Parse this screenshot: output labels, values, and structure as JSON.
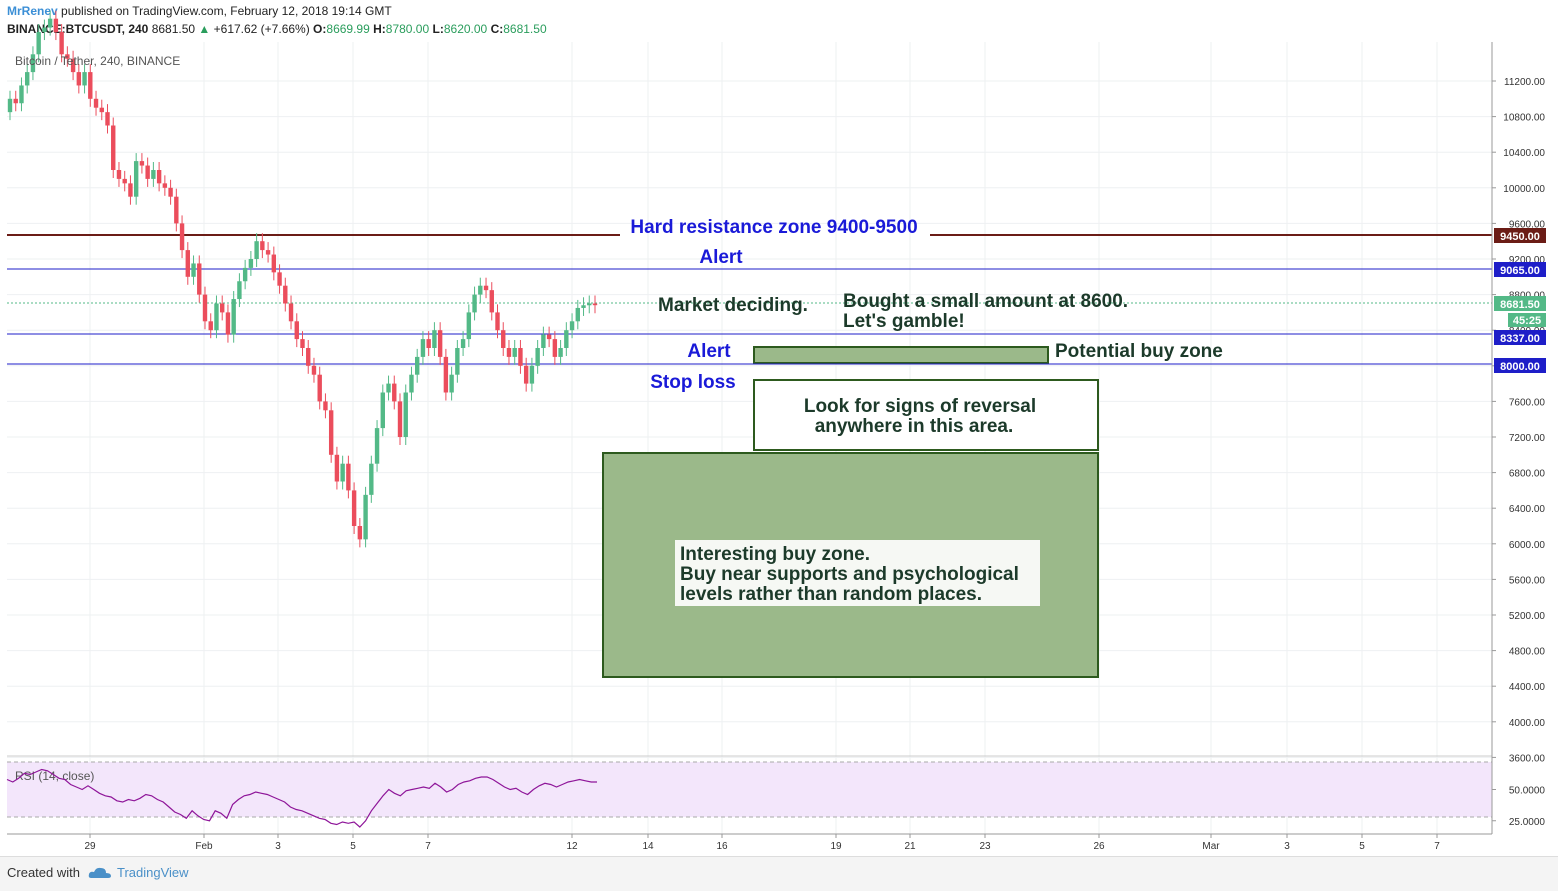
{
  "header": {
    "author": "MrRenev",
    "published": " published on TradingView.com, February 12, 2018 19:14 GMT",
    "symbol": "BINANCE:BTCUSDT, 240",
    "last": " 8681.50 ",
    "change": " +617.62 (+7.66%) ",
    "o_label": "O:",
    "o_val": "8669.99",
    "h_label": " H:",
    "h_val": "8780.00",
    "l_label": " L:",
    "l_val": "8620.00",
    "c_label": " C:",
    "c_val": "8681.50"
  },
  "colors": {
    "up": "#53b987",
    "down": "#eb4d5c",
    "resistance": "#6b1c16",
    "alert": "#1e1ec8",
    "zone_fill": "#9bb98a",
    "zone_border": "#2d5a1e",
    "rsi_bg": "#f3e6fb",
    "rsi_line": "#8e1599",
    "label_blue": "#1a1ad8",
    "note_dark": "#1c3a2a"
  },
  "chart_data": [
    {
      "type": "candlestick",
      "title": "Bitcoin / Tether, 240, BINANCE",
      "x_tick_labels": [
        "29",
        "Feb",
        "3",
        "5",
        "7",
        "12",
        "14",
        "16",
        "19",
        "21",
        "23",
        "26",
        "Mar",
        "3",
        "5",
        "7"
      ],
      "y_tick_labels": [
        "11200.00",
        "10800.00",
        "10400.00",
        "10000.00",
        "9600.00",
        "9200.00",
        "8800.00",
        "8400.00",
        "8000.00",
        "7600.00",
        "7200.00",
        "6800.00",
        "6400.00",
        "6000.00",
        "5600.00",
        "5200.00",
        "4800.00",
        "4400.00",
        "4000.00",
        "3600.00"
      ],
      "ylim": [
        3550,
        11800
      ],
      "close": [
        11000,
        10950,
        11150,
        11300,
        11500,
        11750,
        11800,
        11900,
        11750,
        11500,
        11450,
        11300,
        11150,
        11300,
        11000,
        10900,
        10850,
        10700,
        10200,
        10100,
        10050,
        9900,
        10300,
        10250,
        10100,
        10200,
        10050,
        10000,
        9900,
        9600,
        9300,
        9000,
        9150,
        8800,
        8500,
        8400,
        8700,
        8600,
        8350,
        8750,
        8950,
        9100,
        9200,
        9400,
        9300,
        9250,
        9050,
        8900,
        8700,
        8500,
        8300,
        8200,
        8000,
        7900,
        7600,
        7500,
        7000,
        6700,
        6900,
        6600,
        6200,
        6050,
        6550,
        6900,
        7300,
        7700,
        7800,
        7600,
        7200,
        7700,
        7900,
        8100,
        8300,
        8200,
        8400,
        8100,
        7700,
        7900,
        8200,
        8300,
        8600,
        8800,
        8900,
        8850,
        8600,
        8400,
        8200,
        8100,
        8200,
        8000,
        7800,
        8000,
        8200,
        8350,
        8300,
        8100,
        8200,
        8400,
        8500,
        8650,
        8680,
        8700,
        8681
      ]
    },
    {
      "type": "line",
      "title": "RSI (14, close)",
      "y_tick_labels": [
        "50.0000",
        "25.0000"
      ],
      "ylim": [
        10,
        80
      ],
      "values": [
        58,
        56,
        59,
        63,
        62,
        64,
        66,
        65,
        62,
        59,
        58,
        54,
        52,
        50,
        53,
        50,
        47,
        45,
        44,
        41,
        40,
        42,
        41,
        43,
        46,
        45,
        42,
        40,
        36,
        32,
        30,
        27,
        33,
        29,
        26,
        25,
        33,
        31,
        27,
        38,
        42,
        45,
        46,
        48,
        47,
        46,
        44,
        42,
        40,
        36,
        34,
        33,
        31,
        29,
        27,
        26,
        23,
        22,
        24,
        23,
        24,
        20,
        25,
        33,
        39,
        45,
        50,
        47,
        45,
        49,
        50,
        51,
        52,
        51,
        55,
        52,
        48,
        50,
        54,
        56,
        57,
        59,
        60,
        60,
        58,
        55,
        52,
        50,
        51,
        48,
        46,
        50,
        53,
        55,
        54,
        52,
        54,
        56,
        57,
        58,
        57,
        56,
        56
      ]
    }
  ],
  "levels": {
    "resistance": {
      "value": 9450,
      "badge": "9450.00"
    },
    "alert_upper": {
      "value": 9065,
      "badge": "9065.00"
    },
    "alert_lower": {
      "value": 8337,
      "badge": "8337.00"
    },
    "stop_loss": {
      "value": 8000,
      "badge": "8000.00"
    },
    "last_price": {
      "value": 8681.5,
      "badge": "8681.50",
      "countdown": "45:25"
    }
  },
  "annotations": {
    "resistance_label": "Hard resistance zone 9400-9500",
    "alert1_label": "Alert",
    "alert2_label": "Alert",
    "stop_label": "Stop loss",
    "market_note": "Market deciding.",
    "bought_line1": "Bought a small amount at 8600.",
    "bought_line2": "Let's gamble!",
    "potential_buy_label": "Potential buy zone",
    "reversal_line1": "Look for signs of reversal",
    "reversal_line2": "anywhere in this area.",
    "interesting_line1": "Interesting buy zone.",
    "interesting_line2": "Buy near supports and psychological",
    "interesting_line3": "levels rather than random places."
  },
  "footer": {
    "created_with": "Created with",
    "brand": "TradingView"
  }
}
